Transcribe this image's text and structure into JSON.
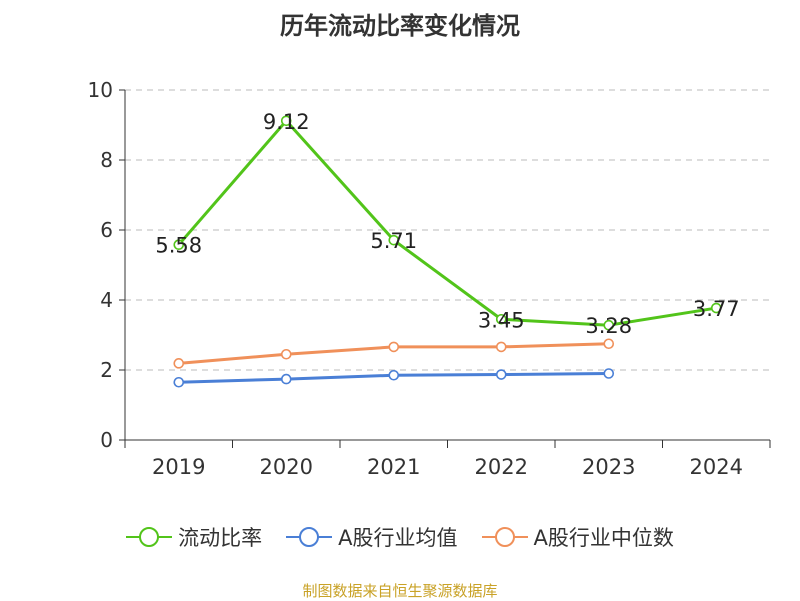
{
  "chart_data": {
    "type": "line",
    "title": "历年流动比率变化情况",
    "categories": [
      "2019",
      "2020",
      "2021",
      "2022",
      "2023",
      "2024"
    ],
    "ylim": [
      0,
      10
    ],
    "yticks": [
      0,
      2,
      4,
      6,
      8,
      10
    ],
    "grid": true,
    "legend_position": "bottom",
    "series": [
      {
        "name": "流动比率",
        "color": "#52c41a",
        "values": [
          5.58,
          9.12,
          5.71,
          3.45,
          3.28,
          3.77
        ],
        "show_labels": true
      },
      {
        "name": "A股行业均值",
        "color": "#4a7fd6",
        "values": [
          1.65,
          1.74,
          1.85,
          1.87,
          1.9,
          null
        ],
        "show_labels": false
      },
      {
        "name": "A股行业中位数",
        "color": "#f0905a",
        "values": [
          2.19,
          2.45,
          2.66,
          2.66,
          2.75,
          null
        ],
        "show_labels": false
      }
    ]
  },
  "source_text": "制图数据来自恒生聚源数据库"
}
